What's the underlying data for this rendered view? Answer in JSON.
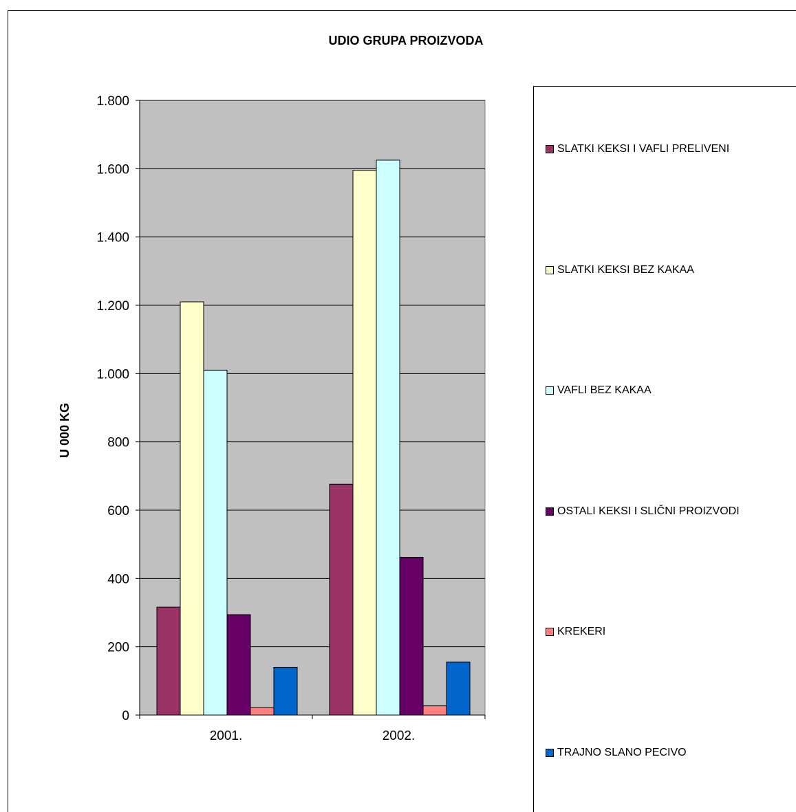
{
  "chart_data": {
    "type": "bar",
    "title": "UDIO GRUPA PROIZVODA",
    "xlabel": "",
    "ylabel": "U 000 KG",
    "categories": [
      "2001.",
      "2002."
    ],
    "ylim": [
      0,
      1800
    ],
    "yticks": [
      0,
      200,
      400,
      600,
      800,
      1000,
      1200,
      1400,
      1600,
      1800
    ],
    "ytick_labels": [
      "0",
      "200",
      "400",
      "600",
      "800",
      "1.000",
      "1.200",
      "1.400",
      "1.600",
      "1.800"
    ],
    "grid": true,
    "legend_position": "right",
    "plot_background": "#c0c0c0",
    "series": [
      {
        "name": "SLATKI KEKSI I VAFLI PRELIVENI",
        "color": "#993366",
        "values": [
          316,
          676
        ]
      },
      {
        "name": "SLATKI KEKSI BEZ KAKAA",
        "color": "#ffffcc",
        "values": [
          1210,
          1595
        ]
      },
      {
        "name": "VAFLI BEZ KAKAA",
        "color": "#ccffff",
        "values": [
          1010,
          1625
        ]
      },
      {
        "name": "OSTALI KEKSI I SLIČNI PROIZVODI",
        "color": "#660066",
        "values": [
          294,
          462
        ]
      },
      {
        "name": "KREKERI",
        "color": "#ff8080",
        "values": [
          22,
          27
        ]
      },
      {
        "name": "TRAJNO SLANO PECIVO",
        "color": "#0066cc",
        "values": [
          140,
          155
        ]
      }
    ]
  }
}
